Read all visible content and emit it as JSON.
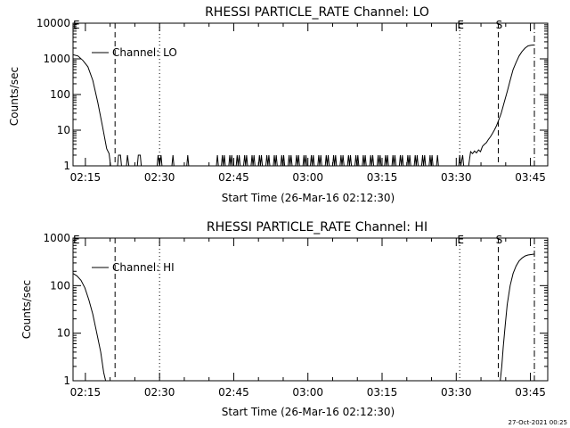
{
  "footer_timestamp": "27-Oct-2021 00:25",
  "chart_data": [
    {
      "type": "line",
      "title": "RHESSI PARTICLE_RATE Channel: LO",
      "xlabel": "Start Time (26-Mar-16 02:12:30)",
      "ylabel": "Counts/sec",
      "yscale": "log",
      "ylim": [
        1,
        10000
      ],
      "xlim_minutes_after_start": [
        0,
        96
      ],
      "yticks": [
        "1",
        "10",
        "100",
        "1000",
        "10000"
      ],
      "xticks": [
        "02:15",
        "02:30",
        "02:45",
        "03:00",
        "03:15",
        "03:30",
        "03:45"
      ],
      "xtick_minutes": [
        2.5,
        17.5,
        32.5,
        47.5,
        62.5,
        77.5,
        92.5
      ],
      "legend": {
        "label": "Channel: LO",
        "placement": "top-left"
      },
      "markers": [
        {
          "label": "E",
          "minute": 0.5,
          "style": "solid"
        },
        {
          "label": "",
          "minute": 8.5,
          "style": "dashed"
        },
        {
          "label": "",
          "minute": 17.5,
          "style": "dotted"
        },
        {
          "label": "E",
          "minute": 78.2,
          "style": "dotted"
        },
        {
          "label": "S",
          "minute": 86.0,
          "style": "dashed"
        },
        {
          "label": "",
          "minute": 93.3,
          "style": "dashdot"
        }
      ],
      "series": [
        {
          "name": "Channel: LO",
          "points": [
            [
              0,
              1300
            ],
            [
              1,
              1200
            ],
            [
              2,
              900
            ],
            [
              3,
              600
            ],
            [
              4,
              250
            ],
            [
              5,
              60
            ],
            [
              6,
              12
            ],
            [
              6.8,
              3
            ],
            [
              7.3,
              2.2
            ],
            [
              7.6,
              1
            ],
            [
              8,
              1
            ],
            [
              9,
              1
            ],
            [
              9.2,
              2
            ],
            [
              9.6,
              2
            ],
            [
              9.8,
              1
            ],
            [
              10,
              1
            ],
            [
              10.8,
              1
            ],
            [
              11,
              2
            ],
            [
              11.3,
              1
            ],
            [
              13,
              1
            ],
            [
              13.2,
              2
            ],
            [
              13.6,
              2
            ],
            [
              13.8,
              1
            ],
            [
              17,
              1
            ],
            [
              17.2,
              2
            ],
            [
              17.5,
              1
            ],
            [
              17.8,
              2
            ],
            [
              18,
              1
            ],
            [
              20,
              1
            ],
            [
              20.2,
              2
            ],
            [
              20.4,
              1
            ],
            [
              23,
              1
            ],
            [
              23.2,
              2
            ],
            [
              23.4,
              1
            ],
            [
              29,
              1
            ],
            [
              29.2,
              2
            ],
            [
              29.4,
              1
            ],
            [
              30,
              1
            ],
            [
              30.2,
              2
            ],
            [
              30.4,
              1
            ],
            [
              30.6,
              2
            ],
            [
              30.8,
              1
            ],
            [
              31.5,
              1
            ],
            [
              31.7,
              2
            ],
            [
              31.9,
              1
            ],
            [
              32.1,
              2
            ],
            [
              32.3,
              1
            ],
            [
              33,
              1
            ],
            [
              33.2,
              2
            ],
            [
              33.4,
              1
            ],
            [
              33.6,
              2
            ],
            [
              33.8,
              1
            ],
            [
              34.5,
              1
            ],
            [
              34.7,
              2
            ],
            [
              34.9,
              1
            ],
            [
              35.1,
              2
            ],
            [
              35.3,
              1
            ],
            [
              36,
              1
            ],
            [
              36.2,
              2
            ],
            [
              36.4,
              1
            ],
            [
              36.6,
              2
            ],
            [
              36.8,
              1
            ],
            [
              37.5,
              1
            ],
            [
              37.7,
              2
            ],
            [
              37.9,
              1
            ],
            [
              38.1,
              2
            ],
            [
              38.3,
              1
            ],
            [
              39,
              1
            ],
            [
              39.2,
              2
            ],
            [
              39.4,
              1
            ],
            [
              39.6,
              2
            ],
            [
              39.8,
              1
            ],
            [
              40.5,
              1
            ],
            [
              40.7,
              2
            ],
            [
              40.9,
              1
            ],
            [
              41.1,
              2
            ],
            [
              41.3,
              1
            ],
            [
              42,
              1
            ],
            [
              42.2,
              2
            ],
            [
              42.4,
              1
            ],
            [
              42.6,
              2
            ],
            [
              42.8,
              1
            ],
            [
              43.5,
              1
            ],
            [
              43.7,
              2
            ],
            [
              43.9,
              1
            ],
            [
              44.1,
              2
            ],
            [
              44.3,
              1
            ],
            [
              45,
              1
            ],
            [
              45.2,
              2
            ],
            [
              45.4,
              1
            ],
            [
              45.6,
              2
            ],
            [
              45.8,
              1
            ],
            [
              46.5,
              1
            ],
            [
              46.7,
              2
            ],
            [
              46.9,
              1
            ],
            [
              47.1,
              2
            ],
            [
              47.3,
              1
            ],
            [
              48,
              1
            ],
            [
              48.2,
              2
            ],
            [
              48.4,
              1
            ],
            [
              48.6,
              2
            ],
            [
              48.8,
              1
            ],
            [
              49.5,
              1
            ],
            [
              49.7,
              2
            ],
            [
              49.9,
              1
            ],
            [
              50.1,
              2
            ],
            [
              50.3,
              1
            ],
            [
              51,
              1
            ],
            [
              51.2,
              2
            ],
            [
              51.4,
              1
            ],
            [
              51.6,
              2
            ],
            [
              51.8,
              1
            ],
            [
              52.5,
              1
            ],
            [
              52.7,
              2
            ],
            [
              52.9,
              1
            ],
            [
              53.1,
              2
            ],
            [
              53.3,
              1
            ],
            [
              54,
              1
            ],
            [
              54.2,
              2
            ],
            [
              54.4,
              1
            ],
            [
              54.6,
              2
            ],
            [
              54.8,
              1
            ],
            [
              55.5,
              1
            ],
            [
              55.7,
              2
            ],
            [
              55.9,
              1
            ],
            [
              56.1,
              2
            ],
            [
              56.3,
              1
            ],
            [
              57,
              1
            ],
            [
              57.2,
              2
            ],
            [
              57.4,
              1
            ],
            [
              57.6,
              2
            ],
            [
              57.8,
              1
            ],
            [
              58.5,
              1
            ],
            [
              58.7,
              2
            ],
            [
              58.9,
              1
            ],
            [
              59.1,
              2
            ],
            [
              59.3,
              1
            ],
            [
              60,
              1
            ],
            [
              60.2,
              2
            ],
            [
              60.4,
              1
            ],
            [
              60.6,
              2
            ],
            [
              60.8,
              1
            ],
            [
              61.5,
              1
            ],
            [
              61.7,
              2
            ],
            [
              61.9,
              1
            ],
            [
              62.1,
              2
            ],
            [
              62.3,
              1
            ],
            [
              63,
              1
            ],
            [
              63.2,
              2
            ],
            [
              63.4,
              1
            ],
            [
              63.6,
              2
            ],
            [
              63.8,
              1
            ],
            [
              64.5,
              1
            ],
            [
              64.7,
              2
            ],
            [
              64.9,
              1
            ],
            [
              65.1,
              2
            ],
            [
              65.3,
              1
            ],
            [
              66,
              1
            ],
            [
              66.2,
              2
            ],
            [
              66.4,
              1
            ],
            [
              66.6,
              2
            ],
            [
              66.8,
              1
            ],
            [
              67.5,
              1
            ],
            [
              67.7,
              2
            ],
            [
              67.9,
              1
            ],
            [
              68.1,
              2
            ],
            [
              68.3,
              1
            ],
            [
              69,
              1
            ],
            [
              69.2,
              2
            ],
            [
              69.4,
              1
            ],
            [
              69.6,
              2
            ],
            [
              69.8,
              1
            ],
            [
              70.5,
              1
            ],
            [
              70.7,
              2
            ],
            [
              70.9,
              1
            ],
            [
              71.1,
              2
            ],
            [
              71.3,
              1
            ],
            [
              72,
              1
            ],
            [
              72.2,
              2
            ],
            [
              72.4,
              1
            ],
            [
              72.6,
              2
            ],
            [
              72.8,
              1
            ],
            [
              73.5,
              1
            ],
            [
              73.7,
              2
            ],
            [
              73.9,
              1
            ],
            [
              78,
              1
            ],
            [
              78.2,
              2
            ],
            [
              78.4,
              1
            ],
            [
              78.8,
              2
            ],
            [
              79,
              1
            ],
            [
              80,
              1
            ],
            [
              80.4,
              2.5
            ],
            [
              80.8,
              2.2
            ],
            [
              81.2,
              2.6
            ],
            [
              81.6,
              2.3
            ],
            [
              82,
              2.8
            ],
            [
              82.4,
              2.5
            ],
            [
              82.8,
              3.5
            ],
            [
              83.2,
              4
            ],
            [
              83.6,
              4.5
            ],
            [
              84,
              5.5
            ],
            [
              84.4,
              6.5
            ],
            [
              84.8,
              8
            ],
            [
              85.2,
              10
            ],
            [
              85.6,
              13
            ],
            [
              86,
              18
            ],
            [
              86.6,
              30
            ],
            [
              87.2,
              60
            ],
            [
              87.8,
              120
            ],
            [
              88.4,
              250
            ],
            [
              89,
              500
            ],
            [
              89.6,
              800
            ],
            [
              90.2,
              1200
            ],
            [
              90.8,
              1600
            ],
            [
              91.4,
              2000
            ],
            [
              92,
              2300
            ],
            [
              92.6,
              2400
            ],
            [
              93.2,
              2450
            ]
          ]
        }
      ]
    },
    {
      "type": "line",
      "title": "RHESSI PARTICLE_RATE Channel: HI",
      "xlabel": "Start Time (26-Mar-16 02:12:30)",
      "ylabel": "Counts/sec",
      "yscale": "log",
      "ylim": [
        1,
        1000
      ],
      "xlim_minutes_after_start": [
        0,
        96
      ],
      "yticks": [
        "1",
        "10",
        "100",
        "1000"
      ],
      "xticks": [
        "02:15",
        "02:30",
        "02:45",
        "03:00",
        "03:15",
        "03:30",
        "03:45"
      ],
      "xtick_minutes": [
        2.5,
        17.5,
        32.5,
        47.5,
        62.5,
        77.5,
        92.5
      ],
      "legend": {
        "label": "Channel: HI",
        "placement": "top-left"
      },
      "markers": [
        {
          "label": "E",
          "minute": 0.5,
          "style": "solid"
        },
        {
          "label": "",
          "minute": 8.5,
          "style": "dashed"
        },
        {
          "label": "",
          "minute": 17.5,
          "style": "dotted"
        },
        {
          "label": "E",
          "minute": 78.2,
          "style": "dotted"
        },
        {
          "label": "S",
          "minute": 86.0,
          "style": "dashed"
        },
        {
          "label": "",
          "minute": 93.3,
          "style": "dashdot"
        }
      ],
      "series": [
        {
          "name": "Channel: HI",
          "segments": [
            [
              [
                0,
                180
              ],
              [
                0.8,
                160
              ],
              [
                1.6,
                130
              ],
              [
                2.4,
                90
              ],
              [
                3.2,
                50
              ],
              [
                4,
                25
              ],
              [
                4.8,
                10
              ],
              [
                5.6,
                4
              ],
              [
                6.2,
                1.5
              ],
              [
                6.6,
                1
              ]
            ],
            [
              [
                86.4,
                1
              ],
              [
                86.7,
                2
              ],
              [
                87,
                5
              ],
              [
                87.4,
                15
              ],
              [
                87.8,
                40
              ],
              [
                88.4,
                100
              ],
              [
                89,
                180
              ],
              [
                89.6,
                260
              ],
              [
                90.2,
                330
              ],
              [
                90.8,
                380
              ],
              [
                91.4,
                420
              ],
              [
                92,
                440
              ],
              [
                92.6,
                450
              ],
              [
                93.2,
                460
              ]
            ]
          ]
        }
      ]
    }
  ]
}
